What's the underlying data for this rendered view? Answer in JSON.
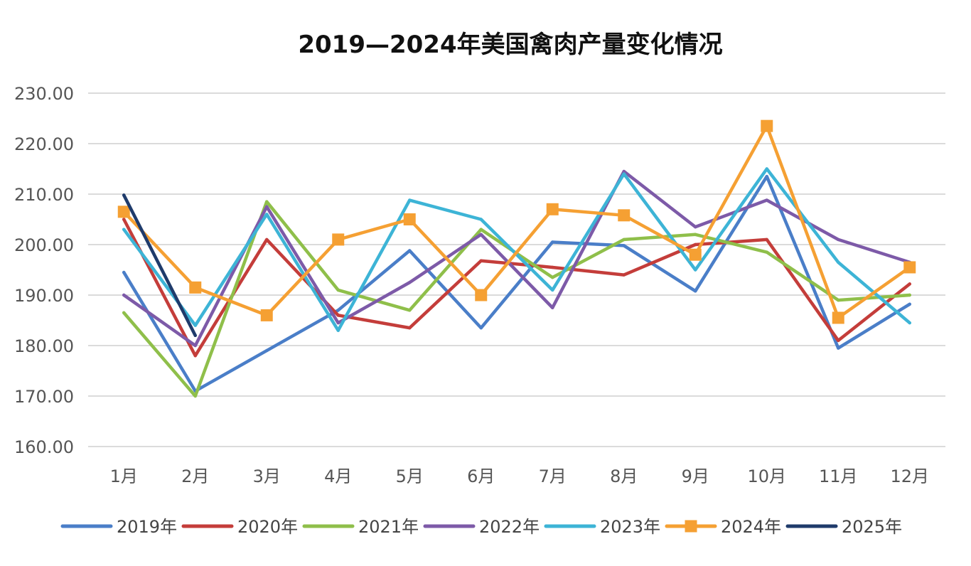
{
  "chart_data": {
    "type": "line",
    "title": "2019—2024年美国禽肉产量变化情况",
    "xlabel": "",
    "ylabel": "",
    "categories": [
      "1月",
      "2月",
      "3月",
      "4月",
      "5月",
      "6月",
      "7月",
      "8月",
      "9月",
      "10月",
      "11月",
      "12月"
    ],
    "y_ticks": [
      "160.00",
      "170.00",
      "180.00",
      "190.00",
      "200.00",
      "210.00",
      "220.00",
      "230.00"
    ],
    "ylim": [
      160,
      230
    ],
    "grid": true,
    "legend_position": "bottom",
    "series": [
      {
        "name": "2019年",
        "color": "#4a7ec8",
        "marker": false,
        "values": [
          194.5,
          171.0,
          179.0,
          187.0,
          198.8,
          183.5,
          200.5,
          199.8,
          190.8,
          213.5,
          179.5,
          188.2
        ]
      },
      {
        "name": "2020年",
        "color": "#c43d3a",
        "marker": false,
        "values": [
          205.0,
          178.0,
          201.0,
          186.0,
          183.5,
          196.8,
          195.5,
          194.0,
          200.0,
          201.0,
          181.0,
          192.2
        ]
      },
      {
        "name": "2021年",
        "color": "#8fbf4a",
        "marker": false,
        "values": [
          186.5,
          170.0,
          208.5,
          191.0,
          187.0,
          203.0,
          193.5,
          201.0,
          202.0,
          198.5,
          189.0,
          190.0
        ]
      },
      {
        "name": "2022年",
        "color": "#7d5aa8",
        "marker": false,
        "values": [
          190.0,
          180.0,
          207.5,
          184.5,
          192.5,
          202.0,
          187.5,
          214.5,
          203.5,
          208.8,
          201.0,
          196.5
        ]
      },
      {
        "name": "2023年",
        "color": "#3db4d6",
        "marker": false,
        "values": [
          203.0,
          184.0,
          206.0,
          183.0,
          208.8,
          205.0,
          191.0,
          214.0,
          195.0,
          215.0,
          196.5,
          184.5
        ]
      },
      {
        "name": "2024年",
        "color": "#f5a033",
        "marker": true,
        "values": [
          206.5,
          191.5,
          186.0,
          201.0,
          205.0,
          190.0,
          207.0,
          205.8,
          198.0,
          223.5,
          185.5,
          195.5
        ]
      },
      {
        "name": "2025年",
        "color": "#1f3b6b",
        "marker": false,
        "values": [
          209.8,
          182.0,
          null,
          null,
          null,
          null,
          null,
          null,
          null,
          null,
          null,
          null
        ]
      }
    ]
  }
}
